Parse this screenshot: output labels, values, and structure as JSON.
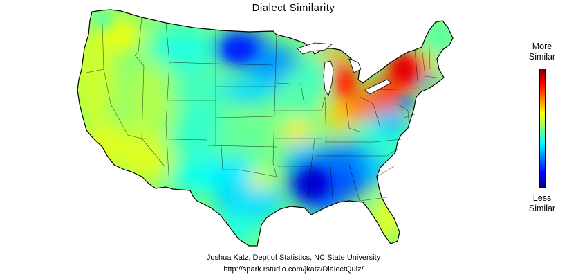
{
  "title": "Dialect Similarity",
  "legend": {
    "top_line1": "More",
    "top_line2": "Similar",
    "bottom_line1": "Less",
    "bottom_line2": "Similar",
    "colorscale": [
      "#00007f",
      "#0000ff",
      "#007fff",
      "#00ffff",
      "#7fff7f",
      "#ffff00",
      "#ff7f00",
      "#ff0000",
      "#7f0000"
    ]
  },
  "credits": {
    "author": "Joshua Katz, Dept of Statistics, NC State University",
    "url": "http://spark.rstudio.com/jkatz/DialectQuiz/"
  },
  "map": {
    "region": "contiguous-united-states",
    "base_color": "#7fff7f",
    "hotspots": [
      {
        "area": "new-york",
        "color": "#ff0000"
      },
      {
        "area": "michigan",
        "color": "#ff3a00"
      },
      {
        "area": "ohio",
        "color": "#ff6a00"
      },
      {
        "area": "pennsylvania",
        "color": "#ff4000"
      },
      {
        "area": "indiana",
        "color": "#ffc000"
      },
      {
        "area": "north-dakota",
        "color": "#0030ff"
      },
      {
        "area": "louisiana-mississippi",
        "color": "#0010e0"
      },
      {
        "area": "alabama-tennessee",
        "color": "#0060ff"
      },
      {
        "area": "new-jersey",
        "color": "#0040ff"
      },
      {
        "area": "massachusetts",
        "color": "#ff2000"
      },
      {
        "area": "california",
        "color": "#d0ff30"
      },
      {
        "area": "florida",
        "color": "#ffff20"
      }
    ]
  }
}
